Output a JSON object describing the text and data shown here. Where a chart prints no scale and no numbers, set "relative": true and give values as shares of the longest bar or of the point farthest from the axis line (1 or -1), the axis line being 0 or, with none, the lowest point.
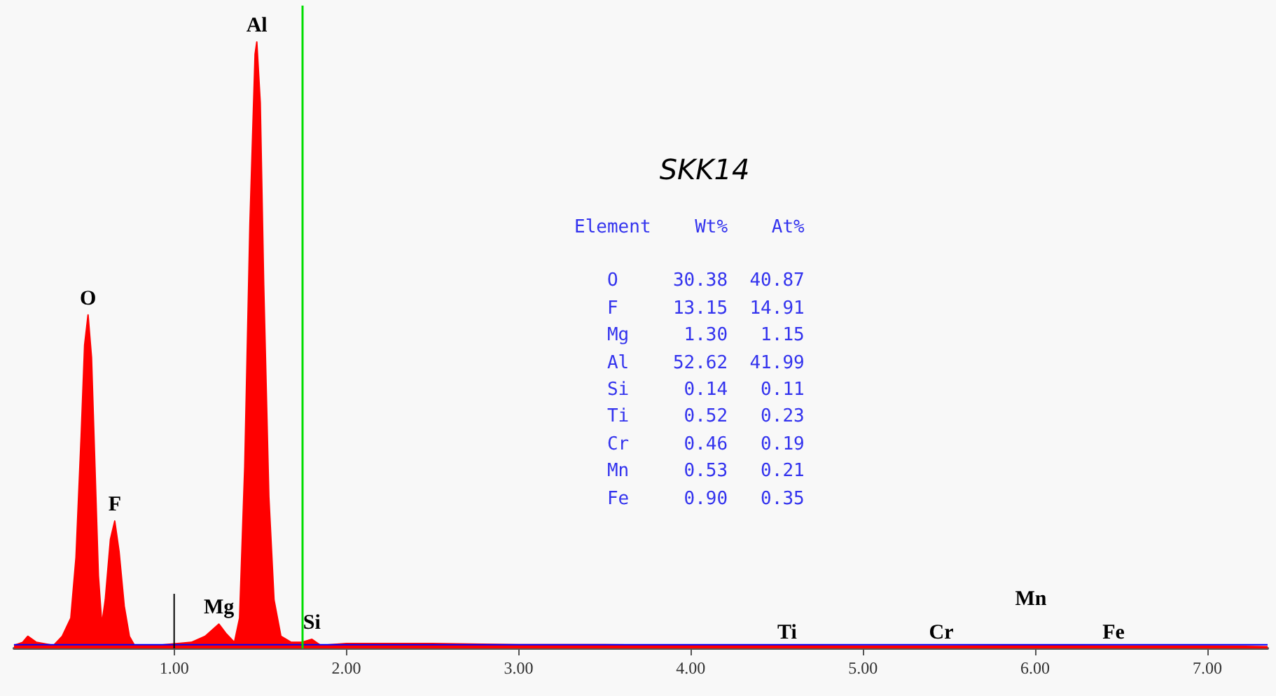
{
  "chart_data": {
    "type": "area",
    "relative": true,
    "title": "SKK14",
    "xlim": [
      0.07,
      7.35
    ],
    "xticks": [
      {
        "value": 1,
        "label": "1.00"
      },
      {
        "value": 2,
        "label": "2.00"
      },
      {
        "value": 3,
        "label": "3.00"
      },
      {
        "value": 4,
        "label": "4.00"
      },
      {
        "value": 5,
        "label": "5.00"
      },
      {
        "value": 6,
        "label": "6.00"
      },
      {
        "value": 7,
        "label": "7.00"
      }
    ],
    "tick_labels": "x",
    "grid": false,
    "series": [
      {
        "color": "#ff0000",
        "x": [
          0.07,
          0.12,
          0.15,
          0.2,
          0.3,
          0.35,
          0.4,
          0.43,
          0.46,
          0.48,
          0.5,
          0.52,
          0.54,
          0.56,
          0.58,
          0.6,
          0.63,
          0.655,
          0.68,
          0.71,
          0.74,
          0.77,
          0.9,
          1.1,
          1.18,
          1.22,
          1.26,
          1.3,
          1.35,
          1.38,
          1.41,
          1.44,
          1.47,
          1.48,
          1.5,
          1.52,
          1.55,
          1.58,
          1.62,
          1.68,
          1.74,
          1.8,
          1.85,
          2.0,
          2.5,
          3.0,
          3.5,
          4.0,
          4.5,
          5.0,
          5.5,
          6.0,
          6.5,
          7.0,
          7.35
        ],
        "values": [
          0.005,
          0.01,
          0.02,
          0.01,
          0.005,
          0.02,
          0.05,
          0.15,
          0.35,
          0.5,
          0.55,
          0.48,
          0.3,
          0.12,
          0.04,
          0.08,
          0.18,
          0.21,
          0.16,
          0.07,
          0.02,
          0.005,
          0.005,
          0.01,
          0.02,
          0.03,
          0.04,
          0.025,
          0.01,
          0.05,
          0.3,
          0.7,
          0.98,
          1,
          0.9,
          0.6,
          0.25,
          0.08,
          0.02,
          0.01,
          0.01,
          0.015,
          0.005,
          0.008,
          0.008,
          0.006,
          0.006,
          0.005,
          0.005,
          0.004,
          0.004,
          0.005,
          0.004,
          0.004,
          0.003
        ]
      },
      {
        "type": "line",
        "color": "#0000ff",
        "x": [
          0.07,
          7.35
        ],
        "values": [
          0.006,
          0.006
        ]
      },
      {
        "type": "line",
        "color": "#000000",
        "x": [
          1.0,
          1.0
        ],
        "values": [
          0,
          0.09
        ]
      }
    ],
    "ref_lines": [
      {
        "axis": "x",
        "value": 1.74,
        "color": "#00dd00"
      }
    ],
    "annotations": [
      {
        "text": "O",
        "x": 0.5,
        "y": 0.55
      },
      {
        "text": "F",
        "x": 0.655,
        "y": 0.21
      },
      {
        "text": "Mg",
        "x": 1.26,
        "y": 0.04
      },
      {
        "text": "Al",
        "x": 1.48,
        "y": 1
      },
      {
        "text": "Si",
        "x": 1.8,
        "y": 0.015
      },
      "Ti",
      "Cr",
      "Mn",
      "Fe",
      "Element    Wt%    At%",
      "   O     30.38  40.87",
      "   F     13.15  14.91",
      "   Mg     1.30   1.15",
      "   Al    52.62  41.99",
      "   Si     0.14   0.11",
      "   Ti     0.52   0.23",
      "   Cr     0.46   0.19",
      "   Mn     0.53   0.21",
      "   Fe     0.90   0.35"
    ]
  }
}
